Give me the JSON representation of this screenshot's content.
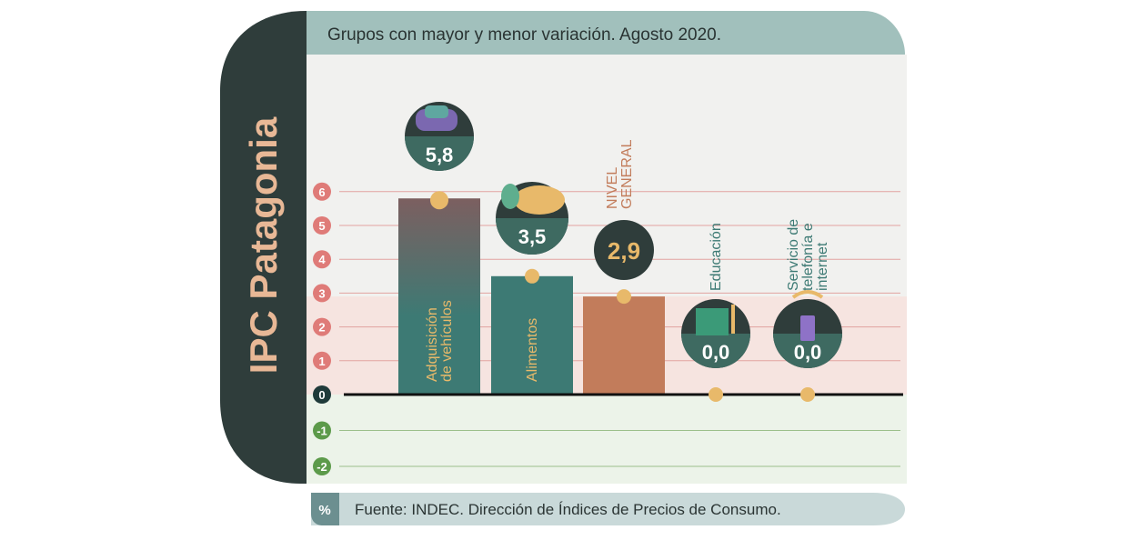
{
  "side_title": "IPC Patagonia",
  "header": {
    "title": "Grupos con mayor y menor variación. Agosto 2020."
  },
  "footer": {
    "unit": "%",
    "source": "Fuente: INDEC. Dirección de Índices de Precios de Consumo."
  },
  "colors": {
    "dark_panel": "#2f3d3b",
    "header_band": "#a1c0bc",
    "positive_band": "#f6e4e0",
    "negative_band": "#ecf3e9",
    "positive_tick": "#df7b78",
    "negative_tick": "#5c9a4a",
    "teal_bar": "#3d7a74",
    "general_bar": "#c27c5b",
    "dot": "#e8b96a"
  },
  "chart_data": {
    "type": "bar",
    "title": "Grupos con mayor y menor variación. Agosto 2020.",
    "ylabel": "%",
    "ylim": [
      -2,
      6
    ],
    "yticks": [
      "-2",
      "-1",
      "0",
      "1",
      "2",
      "3",
      "4",
      "5",
      "6"
    ],
    "grid": true,
    "categories": [
      {
        "label": "Adquisición de vehículos",
        "lines": [
          "Adquisición",
          "de vehículos"
        ],
        "value": 5.8,
        "value_label": "5,8",
        "icon": "car-icon",
        "color": "#3d7a74",
        "label_position": "inside"
      },
      {
        "label": "Alimentos",
        "lines": [
          "Alimentos"
        ],
        "value": 3.5,
        "value_label": "3,5",
        "icon": "chicken-icon",
        "color": "#3d7a74",
        "label_position": "inside"
      },
      {
        "label": "NIVEL GENERAL",
        "lines": [
          "NIVEL",
          "GENERAL"
        ],
        "value": 2.9,
        "value_label": "2,9",
        "icon": "",
        "color": "#c27c5b",
        "label_position": "above"
      },
      {
        "label": "Educación",
        "lines": [
          "Educación"
        ],
        "value": 0.0,
        "value_label": "0,0",
        "icon": "book-icon",
        "color": "#3d7a74",
        "label_position": "above"
      },
      {
        "label": "Servicio de telefonía e internet",
        "lines": [
          "Servicio de",
          "telefonía e",
          "internet"
        ],
        "value": 0.0,
        "value_label": "0,0",
        "icon": "phone-icon",
        "color": "#3d7a74",
        "label_position": "above"
      }
    ]
  }
}
